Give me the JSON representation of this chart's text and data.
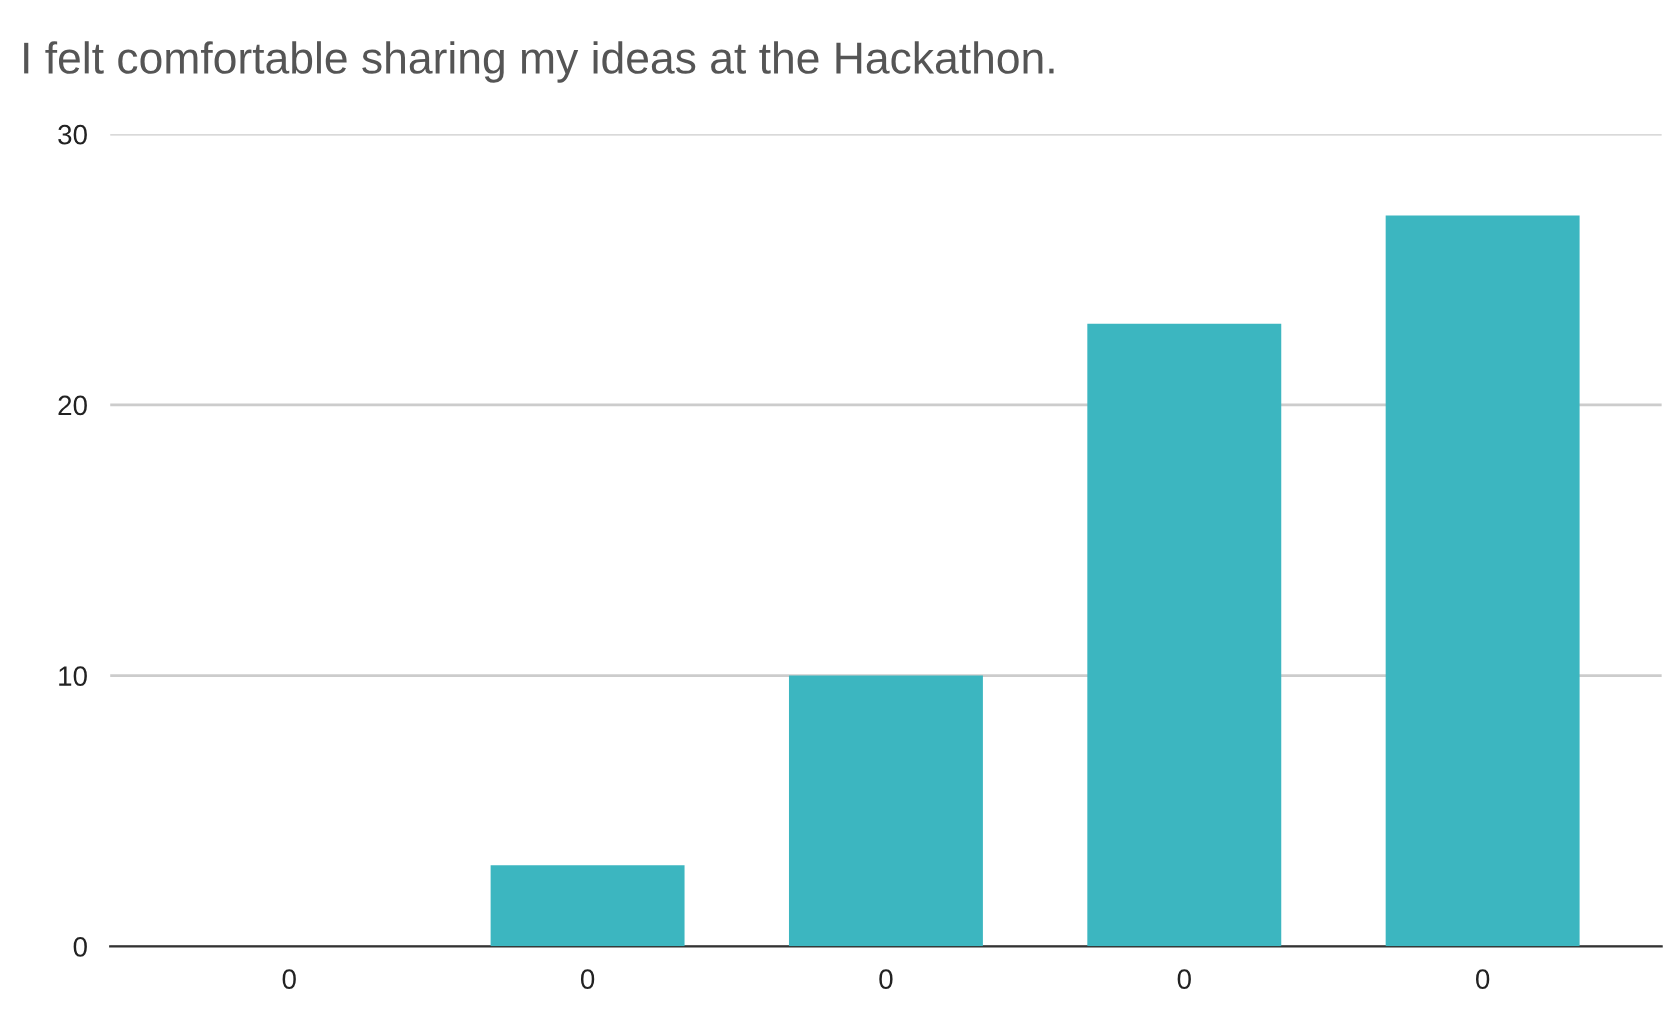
{
  "chart_data": {
    "type": "bar",
    "title": "I felt comfortable sharing my ideas at the Hackathon.",
    "categories": [
      "0",
      "0",
      "0",
      "0",
      "0"
    ],
    "values": [
      0,
      3,
      10,
      23,
      27
    ],
    "color": "#3cb6c0",
    "ylim": [
      0,
      30
    ],
    "yticks": [
      0,
      10,
      20,
      30
    ],
    "grid": "y"
  }
}
